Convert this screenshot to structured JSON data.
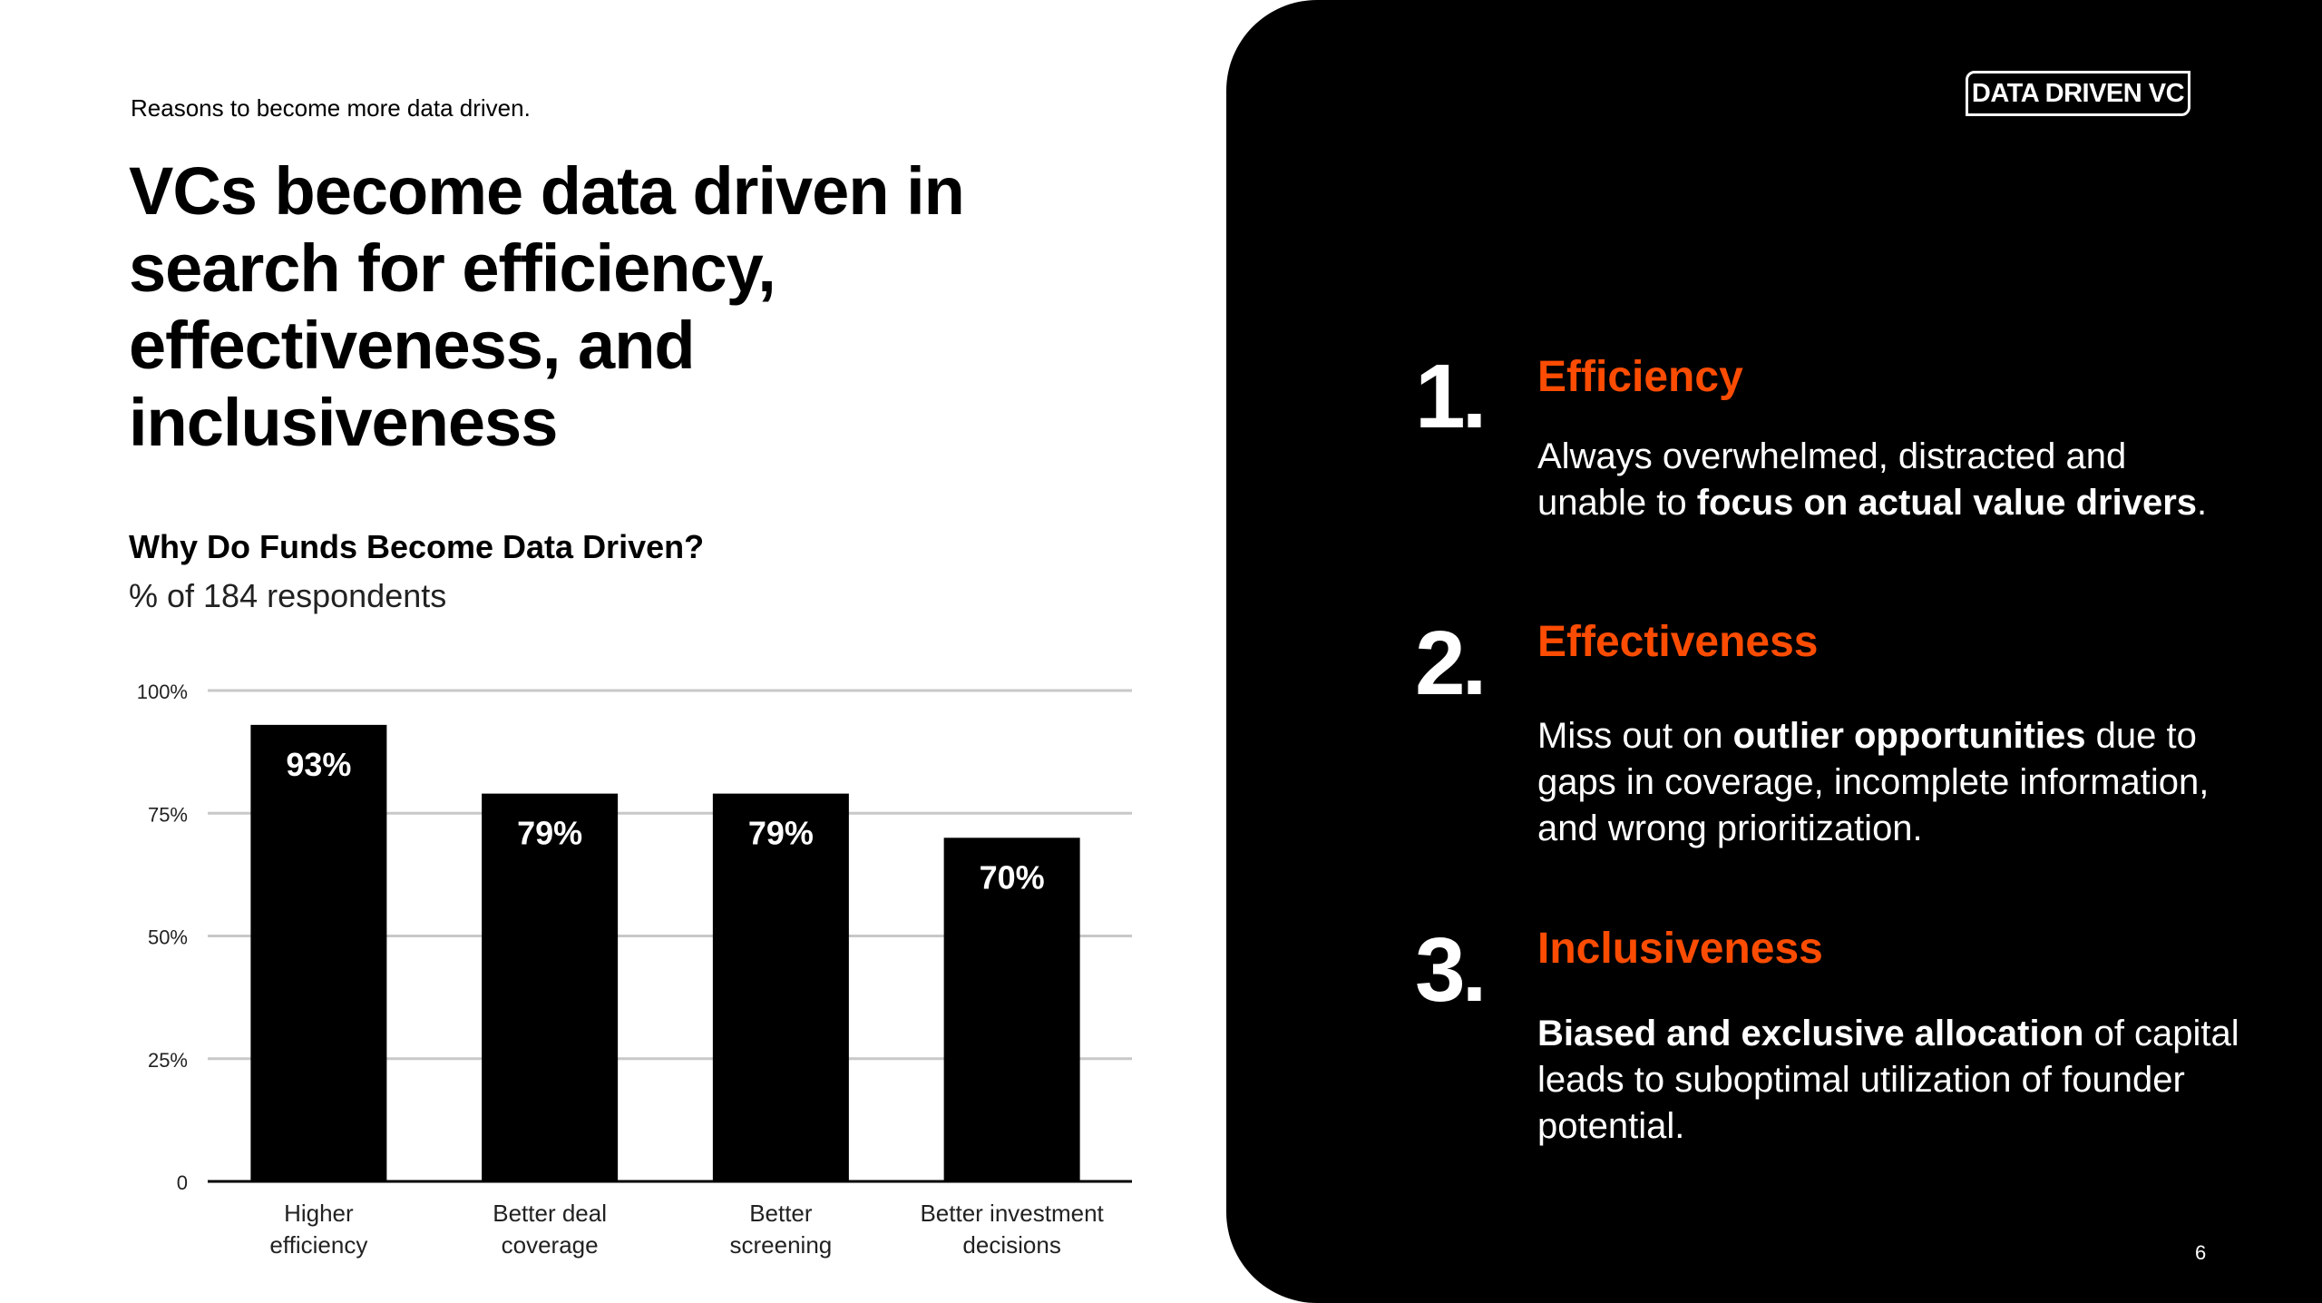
{
  "header": {
    "subtitle": "Reasons to become more data driven.",
    "title": "VCs become data driven in search for efficiency, effectiveness, and inclusiveness"
  },
  "chart_data": {
    "type": "bar",
    "title": "Why Do Funds Become Data Driven?",
    "subtitle": "% of 184 respondents",
    "categories": [
      [
        "Higher",
        "efficiency"
      ],
      [
        "Better deal",
        "coverage"
      ],
      [
        "Better",
        "screening"
      ],
      [
        "Better investment",
        "decisions"
      ]
    ],
    "values": [
      93,
      79,
      79,
      70
    ],
    "data_labels": [
      "93%",
      "79%",
      "79%",
      "70%"
    ],
    "ylim": [
      0,
      100
    ],
    "yticks": [
      0,
      25,
      50,
      75,
      100
    ],
    "ytick_labels": [
      "0",
      "25%",
      "50%",
      "75%",
      "100%"
    ],
    "grid": true,
    "bar_color": "#000000",
    "grid_color": "#c8c8c8"
  },
  "panel": {
    "logo": "DATA DRIVEN VC",
    "accent": "#fc4c02",
    "items": [
      {
        "number": "1.",
        "heading": "Efficiency",
        "body_pre": "Always overwhelmed, distracted and unable to ",
        "body_bold": "focus on actual value drivers",
        "body_post": "."
      },
      {
        "number": "2.",
        "heading": "Effectiveness",
        "body_pre": "Miss out on ",
        "body_bold": "outlier opportunities",
        "body_post": " due to gaps in coverage, incomplete information, and wrong prioritization."
      },
      {
        "number": "3.",
        "heading": "Inclusiveness",
        "body_pre": "",
        "body_bold": "Biased and exclusive allocation",
        "body_post": " of capital leads to suboptimal utilization of founder potential."
      }
    ],
    "page_number": "6"
  }
}
